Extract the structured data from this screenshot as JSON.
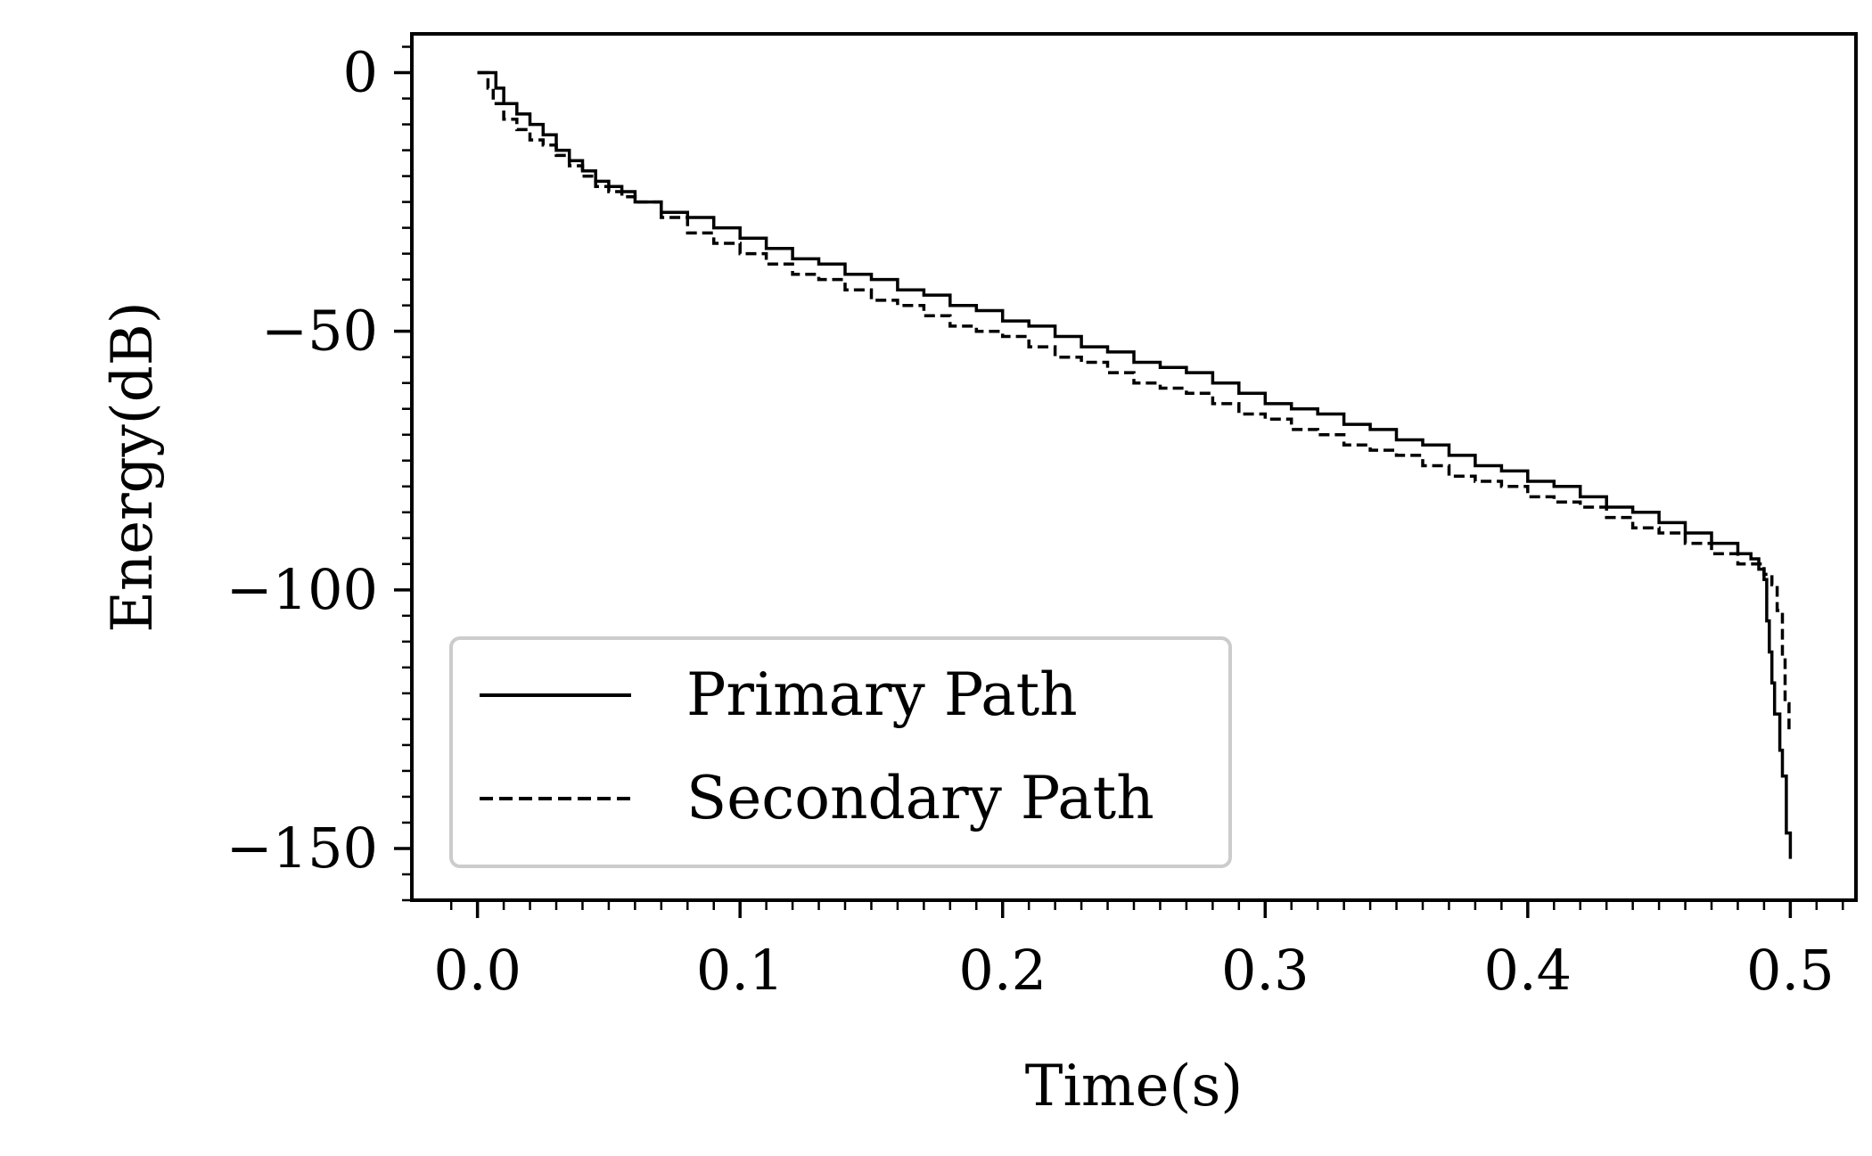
{
  "chart_data": {
    "type": "line",
    "title": "",
    "xlabel": "Time(s)",
    "ylabel": "Energy(dB)",
    "xlim": [
      -0.025,
      0.525
    ],
    "ylim": [
      -160,
      7.5
    ],
    "xticks": [
      0.0,
      0.1,
      0.2,
      0.3,
      0.4,
      0.5
    ],
    "xtick_labels": [
      "0.0",
      "0.1",
      "0.2",
      "0.3",
      "0.4",
      "0.5"
    ],
    "yticks": [
      0,
      -50,
      -100,
      -150
    ],
    "ytick_labels": [
      "0",
      "−50",
      "−100",
      "−150"
    ],
    "grid": false,
    "legend_position": "lower-left",
    "series": [
      {
        "name": "Primary Path",
        "style": "solid",
        "color": "#000000",
        "x": [
          0.0,
          0.005,
          0.007,
          0.01,
          0.015,
          0.02,
          0.025,
          0.03,
          0.035,
          0.04,
          0.045,
          0.05,
          0.055,
          0.06,
          0.07,
          0.08,
          0.09,
          0.1,
          0.11,
          0.12,
          0.13,
          0.14,
          0.15,
          0.16,
          0.17,
          0.18,
          0.19,
          0.2,
          0.21,
          0.22,
          0.23,
          0.24,
          0.25,
          0.26,
          0.27,
          0.28,
          0.29,
          0.3,
          0.31,
          0.32,
          0.33,
          0.34,
          0.35,
          0.36,
          0.37,
          0.38,
          0.39,
          0.4,
          0.41,
          0.42,
          0.43,
          0.44,
          0.45,
          0.46,
          0.47,
          0.48,
          0.485,
          0.488,
          0.49,
          0.491,
          0.492,
          0.493,
          0.494,
          0.496,
          0.497,
          0.4985,
          0.5
        ],
        "y": [
          0,
          0,
          -3,
          -6,
          -8,
          -10,
          -12,
          -15,
          -17,
          -19,
          -21,
          -22,
          -23,
          -25,
          -27,
          -28,
          -30,
          -32,
          -34,
          -36,
          -37,
          -39,
          -40,
          -42,
          -43,
          -45,
          -46,
          -48,
          -49,
          -51,
          -53,
          -54,
          -56,
          -57,
          -58,
          -60,
          -62,
          -64,
          -65,
          -66,
          -68,
          -69,
          -71,
          -72,
          -74,
          -76,
          -77,
          -79,
          -80,
          -82,
          -84,
          -85,
          -87,
          -89,
          -91,
          -93,
          -94,
          -96,
          -98,
          -106,
          -112,
          -118,
          -124,
          -131,
          -136,
          -147,
          -152
        ]
      },
      {
        "name": "Secondary Path",
        "style": "dashed",
        "color": "#000000",
        "x": [
          0.0,
          0.004,
          0.006,
          0.01,
          0.015,
          0.02,
          0.025,
          0.03,
          0.035,
          0.04,
          0.045,
          0.05,
          0.055,
          0.06,
          0.07,
          0.08,
          0.09,
          0.1,
          0.11,
          0.12,
          0.13,
          0.14,
          0.15,
          0.16,
          0.17,
          0.18,
          0.19,
          0.2,
          0.21,
          0.22,
          0.23,
          0.24,
          0.25,
          0.26,
          0.27,
          0.28,
          0.29,
          0.3,
          0.31,
          0.32,
          0.33,
          0.34,
          0.35,
          0.36,
          0.37,
          0.38,
          0.39,
          0.4,
          0.41,
          0.42,
          0.43,
          0.44,
          0.45,
          0.46,
          0.47,
          0.48,
          0.49,
          0.493,
          0.495,
          0.497,
          0.498,
          0.4995
        ],
        "y": [
          0,
          -3,
          -6,
          -9,
          -11,
          -13,
          -14,
          -16,
          -18,
          -20,
          -22,
          -23,
          -24,
          -25,
          -28,
          -31,
          -33,
          -35,
          -37,
          -39,
          -40,
          -42,
          -44,
          -45,
          -47,
          -49,
          -50,
          -51,
          -53,
          -55,
          -56,
          -58,
          -60,
          -61,
          -62,
          -64,
          -66,
          -67,
          -69,
          -70,
          -72,
          -73,
          -74,
          -76,
          -78,
          -79,
          -80,
          -82,
          -83,
          -84,
          -86,
          -88,
          -89,
          -91,
          -93,
          -95,
          -97,
          -99,
          -104,
          -113,
          -122,
          -127
        ]
      }
    ]
  }
}
